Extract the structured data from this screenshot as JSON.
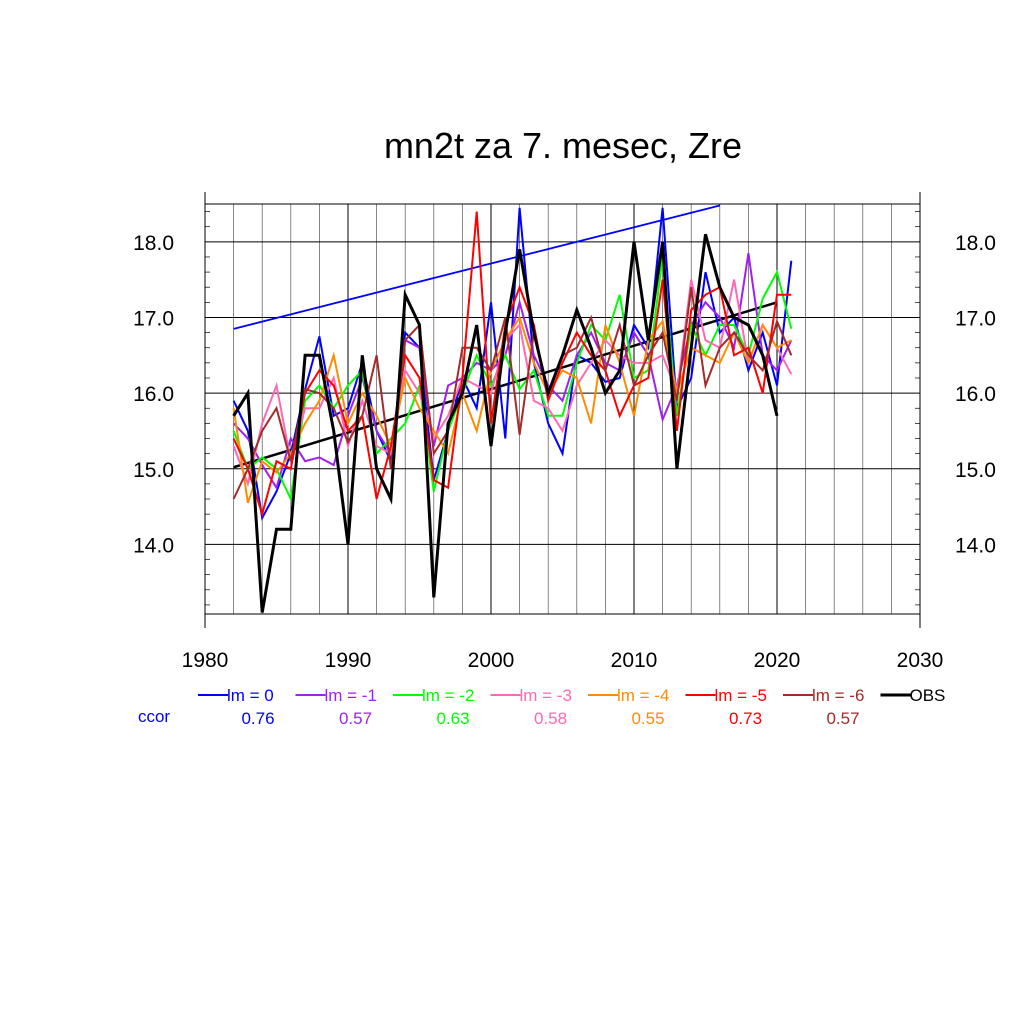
{
  "chart_data": {
    "type": "line",
    "title": "mn2t za 7. mesec, Zre",
    "xlim": [
      1980,
      2030
    ],
    "ylim": [
      13.08,
      18.5
    ],
    "x_ticks": [
      1980,
      1990,
      2000,
      2010,
      2020,
      2030
    ],
    "x_tick_labels": [
      "1980",
      "1990",
      "2000",
      "2010",
      "2020",
      "2030"
    ],
    "y_ticks": [
      14,
      15,
      16,
      17,
      18
    ],
    "y_tick_labels": [
      "14.0",
      "15.0",
      "16.0",
      "17.0",
      "18.0"
    ],
    "grid": true,
    "legend_position": "bottom",
    "ccor_label": "ccor",
    "x": [
      1982,
      1983,
      1984,
      1985,
      1986,
      1987,
      1988,
      1989,
      1990,
      1991,
      1992,
      1993,
      1994,
      1995,
      1996,
      1997,
      1998,
      1999,
      2000,
      2001,
      2002,
      2003,
      2004,
      2005,
      2006,
      2007,
      2008,
      2009,
      2010,
      2011,
      2012,
      2013,
      2014,
      2015,
      2016,
      2017,
      2018,
      2019,
      2020,
      2021
    ],
    "series": [
      {
        "name": "lm = 0",
        "ccor": "0.76",
        "color": "#0000ff",
        "values": [
          15.9,
          15.5,
          14.35,
          14.7,
          15.2,
          16.05,
          16.75,
          15.7,
          15.8,
          16.4,
          15.5,
          15.1,
          16.8,
          16.6,
          14.85,
          15.5,
          16.2,
          15.8,
          17.2,
          15.4,
          18.45,
          16.4,
          15.6,
          15.2,
          16.5,
          16.4,
          16.15,
          16.2,
          16.9,
          16.6,
          18.45,
          15.8,
          16.2,
          17.6,
          16.8,
          17.0,
          16.3,
          16.8,
          16.1,
          17.75
        ]
      },
      {
        "name": "lm = -1",
        "ccor": "0.57",
        "color": "#a020f0",
        "values": [
          15.6,
          15.4,
          15.05,
          14.75,
          15.4,
          15.1,
          15.15,
          15.05,
          15.7,
          16.2,
          15.5,
          15.2,
          16.7,
          16.6,
          15.3,
          16.1,
          16.2,
          16.4,
          16.3,
          16.5,
          17.2,
          16.5,
          16.1,
          15.9,
          16.5,
          16.8,
          16.4,
          16.3,
          16.8,
          16.5,
          15.65,
          16.1,
          16.9,
          17.2,
          17.0,
          16.6,
          17.85,
          16.5,
          16.3,
          16.7
        ]
      },
      {
        "name": "lm = -2",
        "ccor": "0.63",
        "color": "#00ff00",
        "values": [
          15.5,
          15.0,
          15.15,
          15.0,
          14.6,
          15.9,
          16.1,
          15.8,
          16.1,
          16.3,
          15.2,
          15.4,
          15.6,
          16.1,
          14.7,
          15.5,
          16.0,
          16.5,
          16.1,
          16.5,
          16.05,
          16.3,
          15.7,
          15.7,
          16.4,
          16.9,
          16.7,
          17.3,
          16.2,
          16.3,
          17.8,
          15.7,
          16.9,
          16.5,
          16.9,
          16.9,
          16.5,
          17.25,
          17.6,
          16.85
        ]
      },
      {
        "name": "lm = -3",
        "ccor": "0.58",
        "color": "#ff69b4",
        "values": [
          15.3,
          14.8,
          15.6,
          16.1,
          15.1,
          15.8,
          15.8,
          16.2,
          15.3,
          15.9,
          15.3,
          15.2,
          16.3,
          16.0,
          15.4,
          15.7,
          16.2,
          16.1,
          16.0,
          16.7,
          16.9,
          15.9,
          15.8,
          15.5,
          16.1,
          16.4,
          16.7,
          16.5,
          16.4,
          16.4,
          16.5,
          16.0,
          17.5,
          16.7,
          16.6,
          17.5,
          16.4,
          16.9,
          16.6,
          16.25
        ]
      },
      {
        "name": "lm = -4",
        "ccor": "0.55",
        "color": "#ff8c00",
        "values": [
          15.8,
          14.55,
          15.1,
          14.95,
          15.2,
          15.6,
          15.9,
          16.5,
          15.6,
          16.0,
          15.7,
          15.3,
          16.2,
          15.8,
          15.5,
          15.2,
          16.0,
          15.5,
          16.3,
          16.7,
          17.0,
          16.4,
          16.0,
          16.3,
          16.2,
          15.6,
          16.9,
          16.4,
          15.7,
          16.7,
          16.95,
          16.0,
          16.6,
          16.5,
          16.4,
          16.8,
          16.4,
          16.9,
          16.6,
          16.7
        ]
      },
      {
        "name": "lm = -5",
        "ccor": "0.73",
        "color": "#ff0000",
        "values": [
          15.4,
          15.0,
          14.4,
          15.1,
          15.0,
          16.0,
          16.3,
          16.1,
          15.5,
          15.7,
          14.6,
          15.3,
          16.5,
          16.2,
          14.85,
          14.75,
          16.2,
          18.4,
          15.6,
          16.9,
          17.4,
          16.9,
          15.9,
          16.4,
          16.8,
          16.5,
          16.3,
          15.7,
          16.1,
          16.2,
          17.5,
          15.5,
          17.1,
          17.3,
          17.4,
          16.5,
          16.6,
          16.0,
          17.3,
          17.3
        ]
      },
      {
        "name": "lm = -6",
        "ccor": "0.57",
        "color": "#a52a2a",
        "values": [
          14.6,
          15.0,
          15.5,
          15.8,
          15.1,
          16.05,
          16.0,
          15.8,
          15.35,
          15.7,
          16.5,
          15.0,
          16.7,
          16.9,
          15.2,
          15.5,
          16.6,
          16.6,
          16.3,
          17.0,
          15.45,
          16.8,
          16.0,
          16.5,
          16.6,
          17.0,
          16.3,
          16.9,
          16.1,
          16.5,
          16.8,
          15.9,
          17.4,
          16.1,
          16.6,
          16.8,
          16.5,
          16.3,
          16.95,
          16.5
        ]
      },
      {
        "name": "OBS",
        "ccor": "",
        "color": "#000000",
        "bold": true,
        "values": [
          15.7,
          16.0,
          13.1,
          14.2,
          14.2,
          16.5,
          16.5,
          15.5,
          14.0,
          16.5,
          15.0,
          14.6,
          17.3,
          16.9,
          13.3,
          15.6,
          16.0,
          16.9,
          15.3,
          16.8,
          17.9,
          16.8,
          16.0,
          16.5,
          17.1,
          16.6,
          16.0,
          16.3,
          18.0,
          16.7,
          18.0,
          15.0,
          16.6,
          18.1,
          17.4,
          17.0,
          16.9,
          16.5,
          15.7,
          null
        ]
      }
    ],
    "trend_lines": [
      {
        "name": "lm = 0 trend",
        "color": "#0000ff",
        "x": [
          1982,
          2016
        ],
        "y": [
          16.85,
          18.48
        ]
      },
      {
        "name": "OBS trend",
        "color": "#000000",
        "x": [
          1982,
          2020
        ],
        "y": [
          15.02,
          17.2
        ]
      }
    ]
  }
}
